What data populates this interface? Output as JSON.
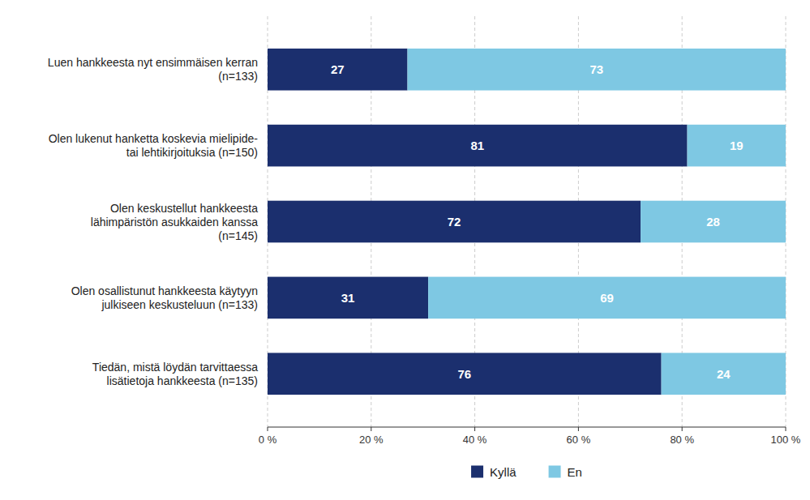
{
  "chart_data": {
    "type": "bar",
    "orientation": "horizontal",
    "stacked": true,
    "categories": [
      "Luen hankkeesta nyt ensimmäisen kerran\n(n=133)",
      "Olen lukenut hanketta koskevia mielipide-\ntai lehtikirjoituksia (n=150)",
      "Olen keskustellut hankkeesta\nlähimpäristön asukkaiden kanssa\n(n=145)",
      "Olen osallistunut hankkeesta käytyyn\njulkiseen keskusteluun (n=133)",
      "Tiedän, mistä löydän tarvittaessa\nlisätietoja hankkeesta (n=135)"
    ],
    "series": [
      {
        "name": "Kyllä",
        "color": "#1B2F6E",
        "values": [
          27,
          81,
          72,
          31,
          76
        ]
      },
      {
        "name": "En",
        "color": "#7EC8E3",
        "values": [
          73,
          19,
          28,
          69,
          24
        ]
      }
    ],
    "xlim": [
      0,
      100
    ],
    "xticks": [
      {
        "value": 0,
        "label": "0 %"
      },
      {
        "value": 20,
        "label": "20 %"
      },
      {
        "value": 40,
        "label": "40 %"
      },
      {
        "value": 60,
        "label": "60 %"
      },
      {
        "value": 80,
        "label": "80 %"
      },
      {
        "value": 100,
        "label": "100 %"
      }
    ],
    "grid": true,
    "data_labels": true,
    "legend": "bottom"
  }
}
